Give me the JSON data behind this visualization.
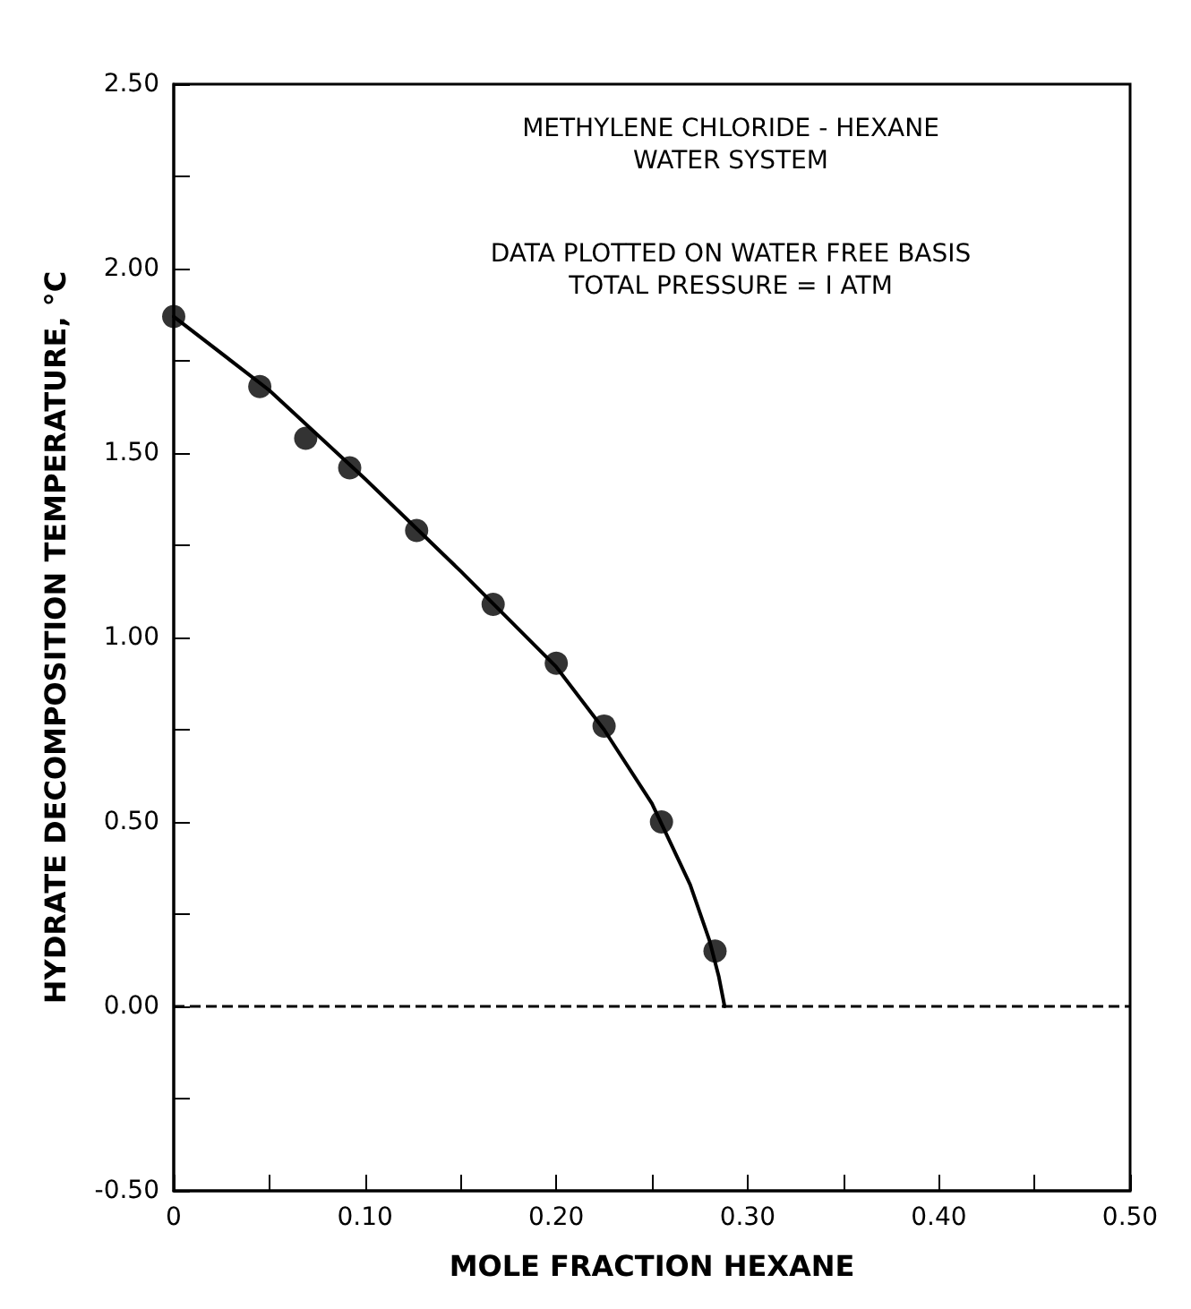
{
  "chart_data": {
    "type": "scatter",
    "xlabel": "MOLE FRACTION HEXANE",
    "ylabel": "HYDRATE DECOMPOSITION TEMPERATURE, °C",
    "annotations": [
      "METHYLENE CHLORIDE - HEXANE\nWATER SYSTEM",
      "DATA PLOTTED ON WATER FREE BASIS\nTOTAL PRESSURE = I ATM"
    ],
    "xlim": [
      0,
      0.5
    ],
    "ylim": [
      -0.5,
      2.5
    ],
    "xticks": [
      {
        "value": 0,
        "label": "0"
      },
      {
        "value": 0.05,
        "label": null
      },
      {
        "value": 0.1,
        "label": "0.10"
      },
      {
        "value": 0.15,
        "label": null
      },
      {
        "value": 0.2,
        "label": "0.20"
      },
      {
        "value": 0.25,
        "label": null
      },
      {
        "value": 0.3,
        "label": "0.30"
      },
      {
        "value": 0.35,
        "label": null
      },
      {
        "value": 0.4,
        "label": "0.40"
      },
      {
        "value": 0.45,
        "label": null
      },
      {
        "value": 0.5,
        "label": "0.50"
      }
    ],
    "yticks": [
      {
        "value": -0.5,
        "label": "-0.50"
      },
      {
        "value": -0.25,
        "label": null
      },
      {
        "value": 0,
        "label": "0.00"
      },
      {
        "value": 0.25,
        "label": null
      },
      {
        "value": 0.5,
        "label": "0.50"
      },
      {
        "value": 0.75,
        "label": null
      },
      {
        "value": 1,
        "label": "1.00"
      },
      {
        "value": 1.25,
        "label": null
      },
      {
        "value": 1.5,
        "label": "1.50"
      },
      {
        "value": 1.75,
        "label": null
      },
      {
        "value": 2,
        "label": "2.00"
      },
      {
        "value": 2.25,
        "label": null
      },
      {
        "value": 2.5,
        "label": "2.50"
      }
    ],
    "grid": false,
    "ref_lines": [
      {
        "axis": "y",
        "value": 0,
        "color": "#000000",
        "line_style": "dashed"
      }
    ],
    "series": [
      {
        "color": "#000000",
        "marker": "circle",
        "x": [
          0,
          0.045,
          0.069,
          0.092,
          0.127,
          0.167,
          0.2,
          0.225,
          0.255,
          0.283
        ],
        "values": [
          1.87,
          1.68,
          1.54,
          1.46,
          1.29,
          1.09,
          0.93,
          0.76,
          0.5,
          0.15
        ]
      },
      {
        "type": "line",
        "color": "#000000",
        "marker": "none",
        "line_style": "solid",
        "x": [
          0,
          0.05,
          0.1,
          0.15,
          0.2,
          0.225,
          0.25,
          0.27,
          0.28,
          0.285,
          0.288
        ],
        "values": [
          1.87,
          1.67,
          1.43,
          1.18,
          0.92,
          0.75,
          0.55,
          0.33,
          0.18,
          0.08,
          0
        ]
      }
    ]
  }
}
